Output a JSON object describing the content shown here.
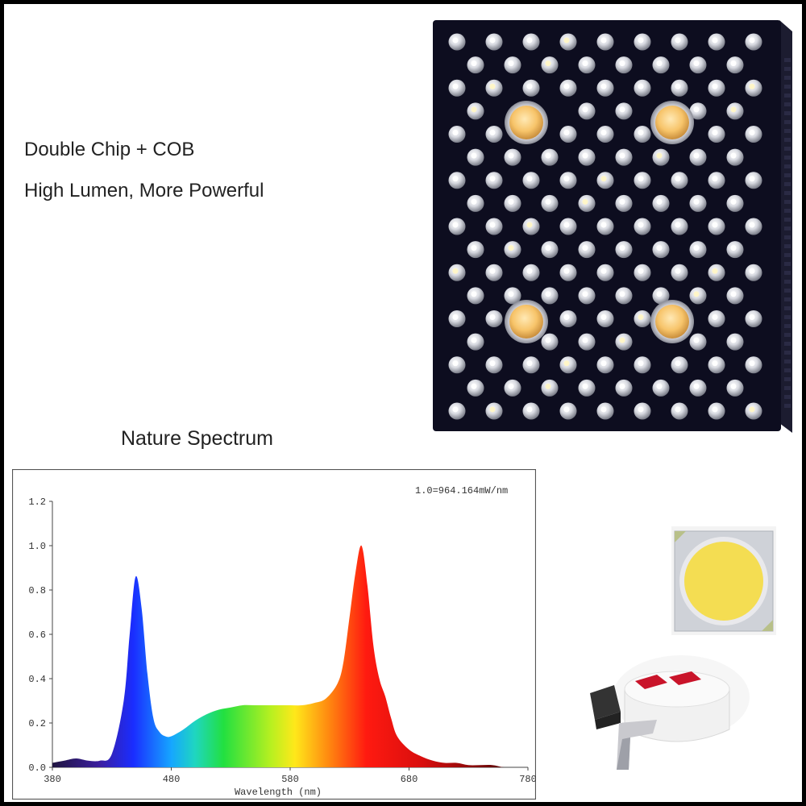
{
  "headline": {
    "line1": "Double Chip + COB",
    "line2": "High Lumen, More Powerful"
  },
  "spectrum_title": "Nature Spectrum",
  "panel": {
    "leds_per_row": [
      9,
      8,
      9,
      8,
      9,
      8,
      9,
      8,
      9,
      8,
      9,
      8,
      9,
      8,
      9,
      8,
      9
    ],
    "cob_count": 4,
    "body_color": "#0d0d1f",
    "cob_color": "#f7c46a"
  },
  "chips": {
    "cob_icon": "cob-chip-icon",
    "smd_icon": "smd-led-icon",
    "cob_phosphor_color": "#f4dd52"
  },
  "chart_data": {
    "type": "area",
    "title": "",
    "annotation": "1.0=964.164mW/nm",
    "xlabel": "Wavelength (nm)",
    "ylabel": "",
    "xlim": [
      380,
      780
    ],
    "ylim": [
      0,
      1.2
    ],
    "x_ticks": [
      "380",
      "480",
      "580",
      "680",
      "780"
    ],
    "y_ticks": [
      "0.0",
      "0.2",
      "0.4",
      "0.6",
      "0.8",
      "1.0",
      "1.2"
    ],
    "grid": false,
    "series": [
      {
        "x": [
          380,
          390,
          400,
          410,
          420,
          430,
          440,
          445,
          450,
          455,
          460,
          465,
          470,
          475,
          480,
          490,
          500,
          510,
          520,
          530,
          540,
          550,
          560,
          570,
          580,
          590,
          600,
          610,
          620,
          625,
          630,
          635,
          640,
          645,
          650,
          655,
          660,
          665,
          670,
          680,
          690,
          700,
          710,
          720,
          730,
          740,
          750,
          760,
          770,
          780
        ],
        "y": [
          0.02,
          0.03,
          0.04,
          0.03,
          0.03,
          0.06,
          0.3,
          0.6,
          0.86,
          0.72,
          0.42,
          0.22,
          0.16,
          0.14,
          0.14,
          0.17,
          0.21,
          0.24,
          0.26,
          0.27,
          0.28,
          0.28,
          0.28,
          0.28,
          0.28,
          0.28,
          0.29,
          0.31,
          0.38,
          0.48,
          0.68,
          0.88,
          1.0,
          0.82,
          0.55,
          0.4,
          0.32,
          0.22,
          0.14,
          0.08,
          0.05,
          0.03,
          0.02,
          0.02,
          0.01,
          0.01,
          0.01,
          0.0,
          0.0,
          0.0
        ]
      }
    ]
  }
}
